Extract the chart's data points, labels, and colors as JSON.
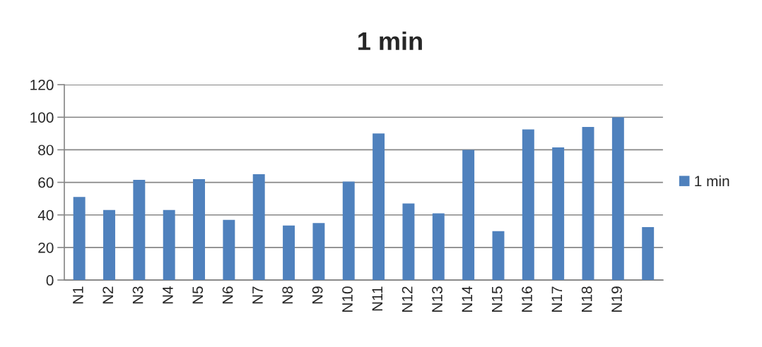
{
  "chart_data": {
    "type": "bar",
    "title": "1 min",
    "categories": [
      "N1",
      "N2",
      "N3",
      "N4",
      "N5",
      "N6",
      "N7",
      "N8",
      "N9",
      "N10",
      "N11",
      "N12",
      "N13",
      "N14",
      "N15",
      "N16",
      "N17",
      "N18",
      "N19",
      null
    ],
    "series": [
      {
        "name": "1 min",
        "color": "#4f81bd",
        "values": [
          51,
          43,
          61.5,
          43,
          62,
          37,
          65,
          33.5,
          35,
          60.5,
          90,
          47,
          41,
          80,
          30,
          92.5,
          81.5,
          94,
          100,
          32.5
        ]
      }
    ],
    "ylim": [
      0,
      120
    ],
    "yticks": [
      0,
      20,
      40,
      60,
      80,
      100,
      120
    ],
    "grid": "y",
    "legend": "right"
  }
}
